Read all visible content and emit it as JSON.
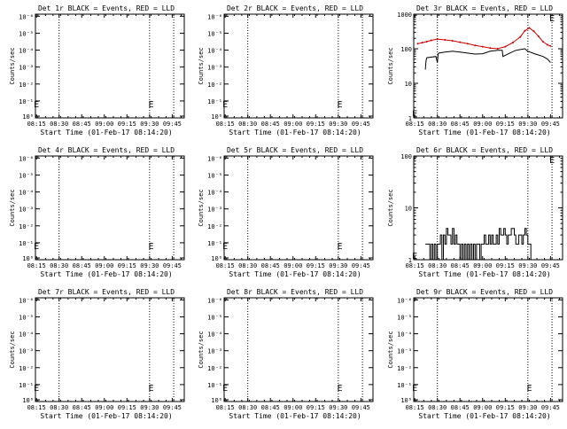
{
  "xaxis": {
    "label": "Start Time (01-Feb-17 08:14:20)",
    "ticks": [
      "08:15",
      "08:30",
      "08:45",
      "09:00",
      "09:15",
      "09:30",
      "09:45"
    ],
    "tick_values_min": [
      15,
      30,
      45,
      60,
      75,
      90,
      105
    ],
    "xlim_min": [
      14.33,
      113
    ],
    "markers_min": [
      30,
      90,
      106
    ],
    "axis_title_y": "Counts/sec"
  },
  "chart_data": [
    {
      "type": "line",
      "title": "Det 1r BLACK = Events, RED = LLD",
      "ylabel": "Counts/sec",
      "yscale": "log",
      "ylim": [
        1,
        10000
      ],
      "ytick_labels": [
        "10⁰",
        "10⁻¹",
        "10⁻²",
        "10⁻³",
        "10⁻⁴",
        "10⁻⁵",
        "10⁻⁶"
      ],
      "series": [],
      "annotations": [
        {
          "text": "E",
          "x": 91,
          "y": 1.2
        },
        {
          "text": "E",
          "x": 15,
          "y": 1.2
        }
      ]
    },
    {
      "type": "line",
      "title": "Det 2r BLACK = Events, RED = LLD",
      "ylabel": "Counts/sec",
      "yscale": "log",
      "ylim": [
        1,
        10000
      ],
      "ytick_labels": [
        "10⁰",
        "10⁻¹",
        "10⁻²",
        "10⁻³",
        "10⁻⁴",
        "10⁻⁵",
        "10⁻⁶"
      ],
      "series": [],
      "annotations": [
        {
          "text": "E",
          "x": 91,
          "y": 1.2
        },
        {
          "text": "E",
          "x": 15,
          "y": 1.2
        }
      ]
    },
    {
      "type": "line",
      "title": "Det 3r BLACK = Events, RED = LLD",
      "ylabel": "Counts/sec",
      "yscale": "log",
      "ylim": [
        1,
        1000
      ],
      "ytick_labels": [
        "1",
        "10",
        "100",
        "1000"
      ],
      "series": [
        {
          "color": "#cc0000",
          "x": [
            17,
            20,
            23,
            26,
            30,
            35,
            40,
            45,
            50,
            55,
            60,
            65,
            70,
            75,
            80,
            85,
            88,
            91,
            94,
            97,
            100,
            103,
            105
          ],
          "y": [
            140,
            150,
            160,
            175,
            190,
            180,
            170,
            155,
            140,
            125,
            115,
            105,
            100,
            115,
            150,
            220,
            330,
            400,
            320,
            230,
            160,
            130,
            120
          ]
        },
        {
          "color": "#000000",
          "x": [
            22,
            22.5,
            23,
            29,
            30,
            30.5,
            31,
            35,
            40,
            45,
            50,
            55,
            60,
            65,
            70,
            73,
            73.5,
            78,
            82,
            85,
            88,
            90,
            95,
            100,
            103,
            105
          ],
          "y": [
            25,
            45,
            55,
            60,
            40,
            70,
            75,
            80,
            85,
            80,
            75,
            70,
            72,
            85,
            90,
            90,
            60,
            75,
            90,
            95,
            100,
            85,
            70,
            60,
            50,
            40
          ]
        }
      ],
      "annotations": [
        {
          "text": "E",
          "x": 106,
          "y": 820
        },
        {
          "text": "E",
          "x": 15,
          "y": 1.1
        }
      ]
    },
    {
      "type": "line",
      "title": "Det 4r BLACK = Events, RED = LLD",
      "ylabel": "Counts/sec",
      "yscale": "log",
      "ylim": [
        1,
        10000
      ],
      "ytick_labels": [
        "10⁰",
        "10⁻¹",
        "10⁻²",
        "10⁻³",
        "10⁻⁴",
        "10⁻⁵",
        "10⁻⁶"
      ],
      "series": [],
      "annotations": [
        {
          "text": "E",
          "x": 91,
          "y": 1.2
        },
        {
          "text": "E",
          "x": 15,
          "y": 1.2
        }
      ]
    },
    {
      "type": "line",
      "title": "Det 5r BLACK = Events, RED = LLD",
      "ylabel": "Counts/sec",
      "yscale": "log",
      "ylim": [
        1,
        10000
      ],
      "ytick_labels": [
        "10⁰",
        "10⁻¹",
        "10⁻²",
        "10⁻³",
        "10⁻⁴",
        "10⁻⁵",
        "10⁻⁶"
      ],
      "series": [],
      "annotations": [
        {
          "text": "E",
          "x": 91,
          "y": 1.2
        },
        {
          "text": "E",
          "x": 15,
          "y": 1.2
        }
      ]
    },
    {
      "type": "line",
      "title": "Det 6r BLACK = Events, RED = LLD",
      "ylabel": "Counts/sec",
      "yscale": "log",
      "ylim": [
        1,
        100
      ],
      "ytick_labels": [
        "1",
        "10",
        "100"
      ],
      "series": [
        {
          "color": "#000000",
          "step": true,
          "x": [
            22,
            25,
            26,
            27,
            28,
            29,
            30,
            31,
            32,
            33,
            34,
            35,
            36,
            37,
            38,
            39,
            40,
            41,
            42,
            43,
            44,
            45,
            46,
            47,
            48,
            49,
            50,
            51,
            52,
            53,
            54,
            55,
            56,
            57,
            58,
            59,
            60,
            61,
            62,
            63,
            64,
            65,
            66,
            67,
            68,
            69,
            70,
            71,
            72,
            73,
            74,
            75,
            76,
            77,
            78,
            79,
            80,
            81,
            82,
            83,
            84,
            85,
            86,
            87,
            88,
            89,
            90,
            91,
            92,
            93
          ],
          "y": [
            2,
            1,
            2,
            1,
            2,
            1,
            2,
            2,
            3,
            1,
            3,
            2,
            4,
            3,
            3,
            2,
            4,
            2,
            3,
            2,
            2,
            1,
            2,
            1,
            2,
            1,
            2,
            1,
            2,
            1,
            2,
            1,
            2,
            2,
            1,
            2,
            2,
            3,
            2,
            2,
            3,
            2,
            3,
            2,
            2,
            3,
            2,
            4,
            3,
            3,
            4,
            3,
            2,
            3,
            3,
            4,
            4,
            3,
            2,
            2,
            3,
            3,
            2,
            3,
            4,
            3,
            2,
            2,
            1,
            1
          ]
        }
      ],
      "annotations": [
        {
          "text": "E",
          "x": 106,
          "y": 88
        },
        {
          "text": "E",
          "x": 15,
          "y": 1.05
        }
      ]
    },
    {
      "type": "line",
      "title": "Det 7r BLACK = Events, RED = LLD",
      "ylabel": "Counts/sec",
      "yscale": "log",
      "ylim": [
        1,
        10000
      ],
      "ytick_labels": [
        "10⁰",
        "10⁻¹",
        "10⁻²",
        "10⁻³",
        "10⁻⁴",
        "10⁻⁵",
        "10⁻⁶"
      ],
      "series": [],
      "annotations": [
        {
          "text": "E",
          "x": 91,
          "y": 1.2
        },
        {
          "text": "E",
          "x": 15,
          "y": 1.2
        }
      ]
    },
    {
      "type": "line",
      "title": "Det 8r BLACK = Events, RED = LLD",
      "ylabel": "Counts/sec",
      "yscale": "log",
      "ylim": [
        1,
        10000
      ],
      "ytick_labels": [
        "10⁰",
        "10⁻¹",
        "10⁻²",
        "10⁻³",
        "10⁻⁴",
        "10⁻⁵",
        "10⁻⁶"
      ],
      "series": [],
      "annotations": [
        {
          "text": "E",
          "x": 91,
          "y": 1.2
        },
        {
          "text": "E",
          "x": 15,
          "y": 1.2
        }
      ]
    },
    {
      "type": "line",
      "title": "Det 9r BLACK = Events, RED = LLD",
      "ylabel": "Counts/sec",
      "yscale": "log",
      "ylim": [
        1,
        10000
      ],
      "ytick_labels": [
        "10⁰",
        "10⁻¹",
        "10⁻²",
        "10⁻³",
        "10⁻⁴",
        "10⁻⁵",
        "10⁻⁶"
      ],
      "series": [],
      "annotations": [
        {
          "text": "E",
          "x": 91,
          "y": 1.2
        },
        {
          "text": "E",
          "x": 15,
          "y": 1.2
        }
      ]
    }
  ]
}
